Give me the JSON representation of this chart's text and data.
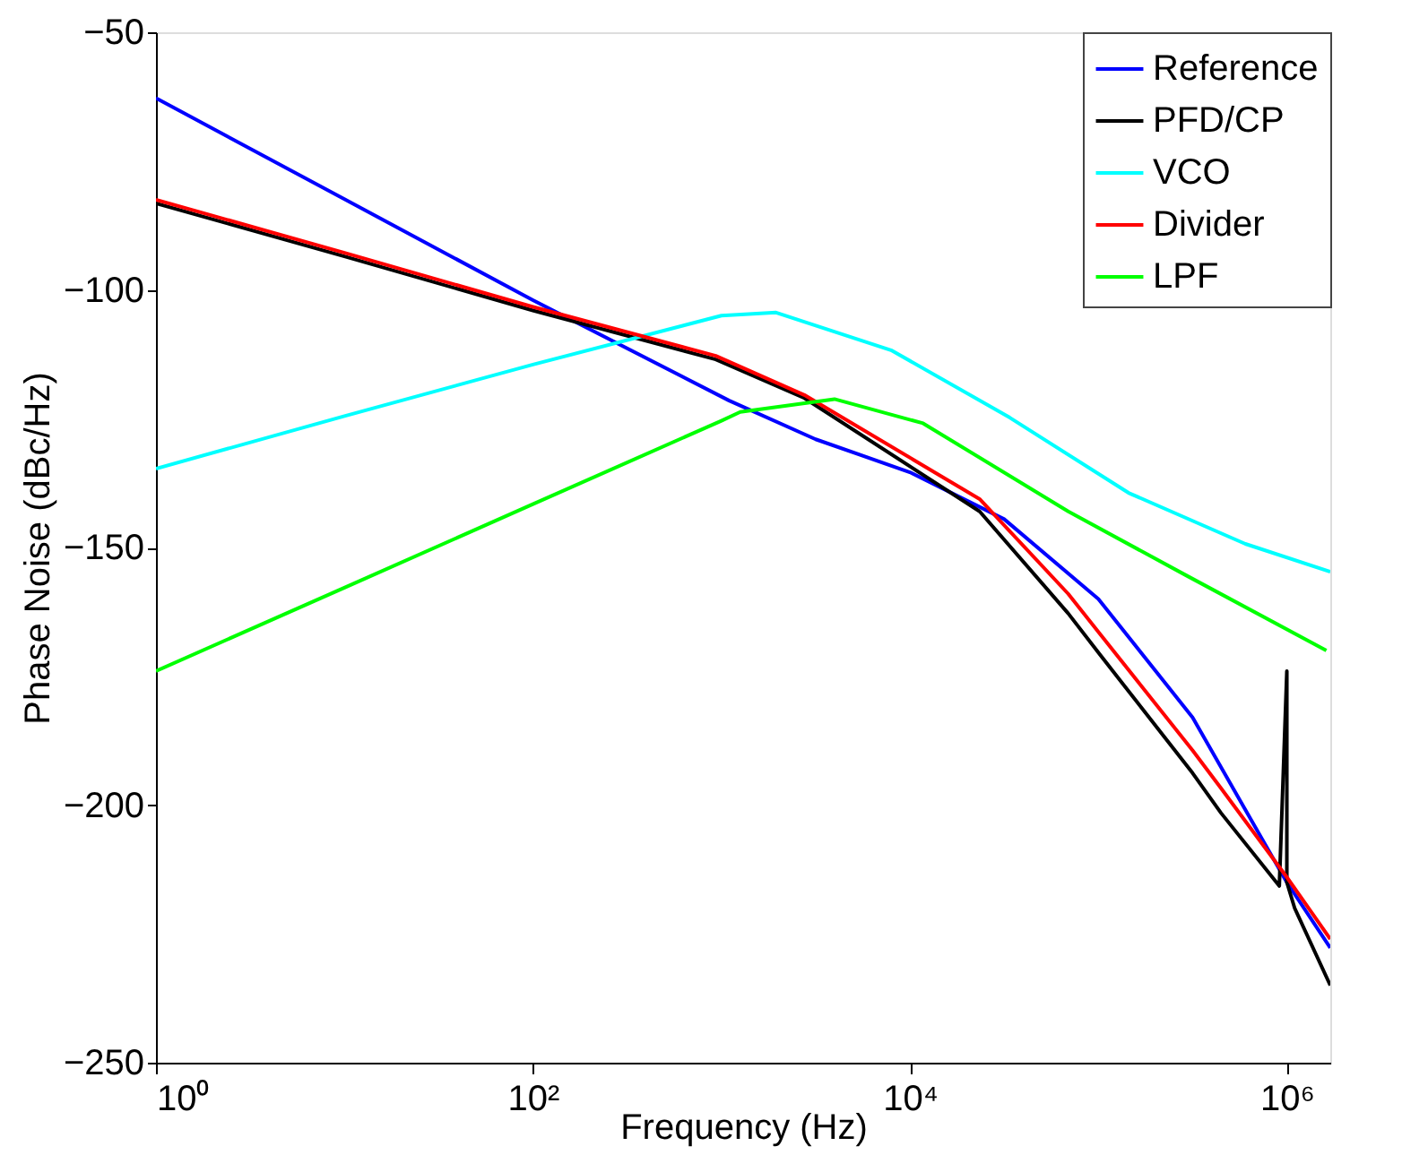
{
  "chart_data": {
    "type": "line",
    "xlabel": "Frequency (Hz)",
    "ylabel": "Phase Noise (dBc/Hz)",
    "log": "x",
    "xlim": [
      1,
      1700000
    ],
    "xticks": [
      {
        "value": 1,
        "label": "10⁰"
      },
      {
        "value": 100,
        "label": "10²"
      },
      {
        "value": 10000,
        "label": "10⁴"
      },
      {
        "value": 1000000,
        "label": "10⁶"
      }
    ],
    "ylim": [
      -250,
      -50
    ],
    "yticks": [
      -250,
      -200,
      -150,
      -100,
      -50
    ],
    "grid": false,
    "legend": "top right",
    "line_style": "solid",
    "marker": "none",
    "series": [
      {
        "name": "Reference",
        "color": "#0000ff",
        "x": [
          1,
          10,
          100,
          1100,
          3162,
          10000,
          31623,
          100000,
          316228,
          1000000,
          1700000
        ],
        "values": [
          -62.8,
          -82.4,
          -102,
          -121.5,
          -129,
          -135.4,
          -144.5,
          -160,
          -183,
          -215,
          -227.7
        ]
      },
      {
        "name": "PFD/CP",
        "color": "#000000",
        "x": [
          1,
          10,
          100,
          933,
          2754,
          23442,
          69183,
          100000,
          316228,
          446684,
          912000,
          1000000,
          1000000,
          1100000,
          1700000
        ],
        "values": [
          -83.2,
          -93.5,
          -104,
          -113.5,
          -121,
          -143,
          -162.8,
          -170.4,
          -193.8,
          -201.5,
          -215.7,
          -174,
          -215,
          -220,
          -235
        ]
      },
      {
        "name": "VCO",
        "color": "#00ffff",
        "x": [
          1,
          10,
          100,
          1000,
          1950,
          7943,
          33884,
          144544,
          602560,
          1700000
        ],
        "values": [
          -134.7,
          -124.5,
          -114.5,
          -105,
          -104.4,
          -111.7,
          -124.8,
          -139.4,
          -149.3,
          -154.7
        ]
      },
      {
        "name": "Divider",
        "color": "#ff0000",
        "x": [
          1,
          10,
          100,
          933,
          2754,
          23442,
          69183,
          100000,
          316228,
          446684,
          1000000,
          1700000
        ],
        "values": [
          -82.5,
          -92.8,
          -103.3,
          -112.8,
          -120.4,
          -140.6,
          -159,
          -166.4,
          -189.4,
          -196.7,
          -214,
          -226
        ]
      },
      {
        "name": "LPF",
        "color": "#00ff00",
        "x": [
          1,
          10,
          100,
          1000,
          1259,
          3981,
          11749,
          69183,
          295121,
          1620000
        ],
        "values": [
          -174,
          -157.8,
          -141.6,
          -125.4,
          -123.7,
          -121.2,
          -125.9,
          -143,
          -155.5,
          -170
        ]
      }
    ]
  }
}
